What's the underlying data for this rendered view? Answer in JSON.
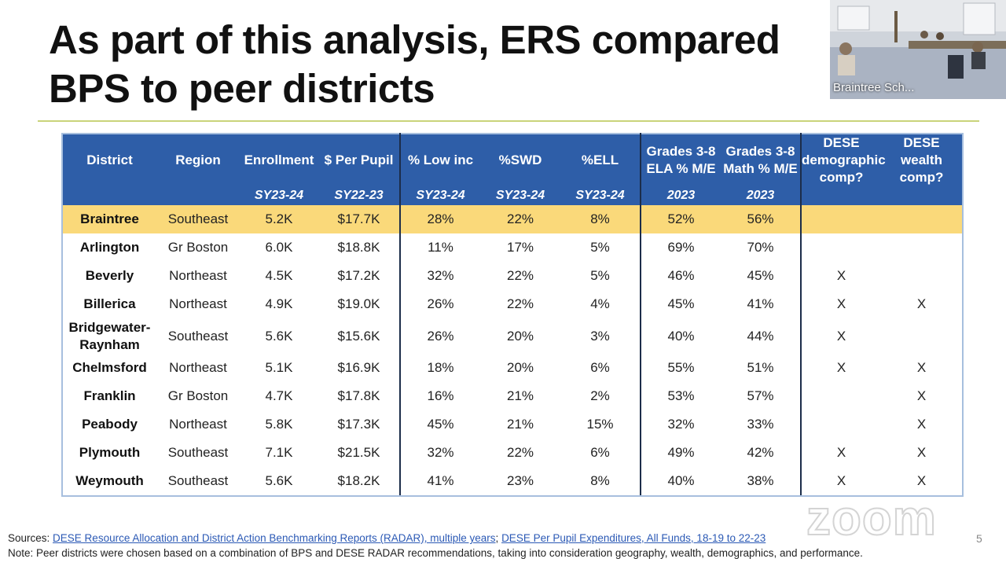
{
  "slide": {
    "title": "As part of this analysis, ERS compared BPS to peer districts",
    "page_number": "5"
  },
  "video_tile": {
    "name": "Braintree Sch..."
  },
  "watermark": "zoom",
  "table": {
    "columns": [
      {
        "label": "District",
        "sub": ""
      },
      {
        "label": "Region",
        "sub": ""
      },
      {
        "label": "Enrollment",
        "sub": "SY23-24"
      },
      {
        "label": "$ Per Pupil",
        "sub": "SY22-23"
      },
      {
        "label": "% Low inc",
        "sub": "SY23-24"
      },
      {
        "label": "%SWD",
        "sub": "SY23-24"
      },
      {
        "label": "%ELL",
        "sub": "SY23-24"
      },
      {
        "label": "Grades 3-8 ELA % M/E",
        "sub": "2023"
      },
      {
        "label": "Grades 3-8 Math % M/E",
        "sub": "2023"
      },
      {
        "label": "DESE demographic comp?",
        "sub": ""
      },
      {
        "label": "DESE wealth comp?",
        "sub": ""
      }
    ],
    "rows": [
      [
        "Braintree",
        "Southeast",
        "5.2K",
        "$17.7K",
        "28%",
        "22%",
        "8%",
        "52%",
        "56%",
        "",
        ""
      ],
      [
        "Arlington",
        "Gr Boston",
        "6.0K",
        "$18.8K",
        "11%",
        "17%",
        "5%",
        "69%",
        "70%",
        "",
        ""
      ],
      [
        "Beverly",
        "Northeast",
        "4.5K",
        "$17.2K",
        "32%",
        "22%",
        "5%",
        "46%",
        "45%",
        "X",
        ""
      ],
      [
        "Billerica",
        "Northeast",
        "4.9K",
        "$19.0K",
        "26%",
        "22%",
        "4%",
        "45%",
        "41%",
        "X",
        "X"
      ],
      [
        "Bridgewater-Raynham",
        "Southeast",
        "5.6K",
        "$15.6K",
        "26%",
        "20%",
        "3%",
        "40%",
        "44%",
        "X",
        ""
      ],
      [
        "Chelmsford",
        "Northeast",
        "5.1K",
        "$16.9K",
        "18%",
        "20%",
        "6%",
        "55%",
        "51%",
        "X",
        "X"
      ],
      [
        "Franklin",
        "Gr Boston",
        "4.7K",
        "$17.8K",
        "16%",
        "21%",
        "2%",
        "53%",
        "57%",
        "",
        "X"
      ],
      [
        "Peabody",
        "Northeast",
        "5.8K",
        "$17.3K",
        "45%",
        "21%",
        "15%",
        "32%",
        "33%",
        "",
        "X"
      ],
      [
        "Plymouth",
        "Southeast",
        "7.1K",
        "$21.5K",
        "32%",
        "22%",
        "6%",
        "49%",
        "42%",
        "X",
        "X"
      ],
      [
        "Weymouth",
        "Southeast",
        "5.6K",
        "$18.2K",
        "41%",
        "23%",
        "8%",
        "40%",
        "38%",
        "X",
        "X"
      ]
    ]
  },
  "footer": {
    "sources_label": "Sources:",
    "link1": "DESE Resource Allocation and District Action Benchmarking Reports (RADAR), multiple years",
    "separator": ";",
    "link2": "DESE Per Pupil Expenditures, All Funds, 18-19 to 22-23",
    "note": "Note: Peer districts were chosen based on a combination of BPS and DESE RADAR recommendations, taking into consideration geography, wealth, demographics, and performance."
  }
}
